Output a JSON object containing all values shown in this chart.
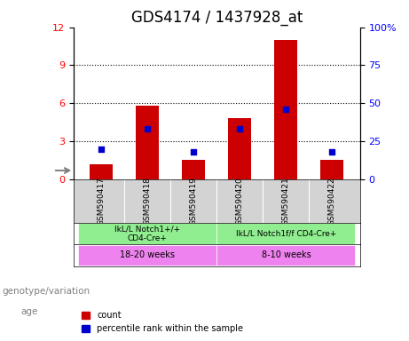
{
  "title": "GDS4174 / 1437928_at",
  "samples": [
    "GSM590417",
    "GSM590418",
    "GSM590419",
    "GSM590420",
    "GSM590421",
    "GSM590422"
  ],
  "count_values": [
    1.2,
    5.8,
    1.5,
    4.8,
    11.0,
    1.5
  ],
  "percentile_values": [
    20,
    33,
    18,
    33,
    46,
    18
  ],
  "bar_color": "#cc0000",
  "dot_color": "#0000cc",
  "ylim_left": [
    0,
    12
  ],
  "ylim_right": [
    0,
    100
  ],
  "yticks_left": [
    0,
    3,
    6,
    9,
    12
  ],
  "yticks_right": [
    0,
    25,
    50,
    75,
    100
  ],
  "ytick_labels_right": [
    "0",
    "25",
    "50",
    "75",
    "100%"
  ],
  "genotype_groups": [
    {
      "label": "IkL/L Notch1+/+\nCD4-Cre+",
      "start": 0,
      "end": 3,
      "color": "#90ee90"
    },
    {
      "label": "IkL/L Notch1f/f CD4-Cre+",
      "start": 3,
      "end": 6,
      "color": "#90ee90"
    }
  ],
  "age_groups": [
    {
      "label": "18-20 weeks",
      "start": 0,
      "end": 3,
      "color": "#ee82ee"
    },
    {
      "label": "8-10 weeks",
      "start": 3,
      "end": 6,
      "color": "#ee82ee"
    }
  ],
  "genotype_label": "genotype/variation",
  "age_label": "age",
  "legend_count": "count",
  "legend_percentile": "percentile rank within the sample",
  "bar_width": 0.5,
  "sample_row_color": "#d3d3d3",
  "title_fontsize": 12,
  "axis_fontsize": 9,
  "tick_fontsize": 8
}
